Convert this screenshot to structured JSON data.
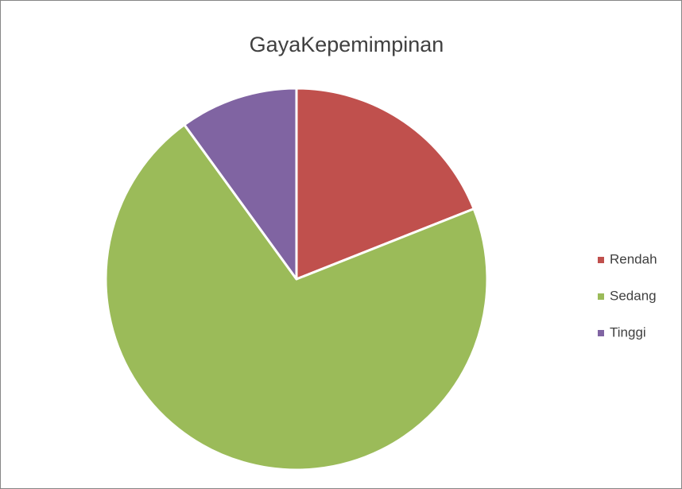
{
  "chart_data": {
    "type": "pie",
    "title": "GayaKepemimpinan",
    "categories": [
      "Rendah",
      "Sedang",
      "Tinggi"
    ],
    "values": [
      19,
      71,
      10
    ],
    "colors": [
      "#c0504d",
      "#9bbb59",
      "#8064a2"
    ],
    "legend": "right"
  }
}
